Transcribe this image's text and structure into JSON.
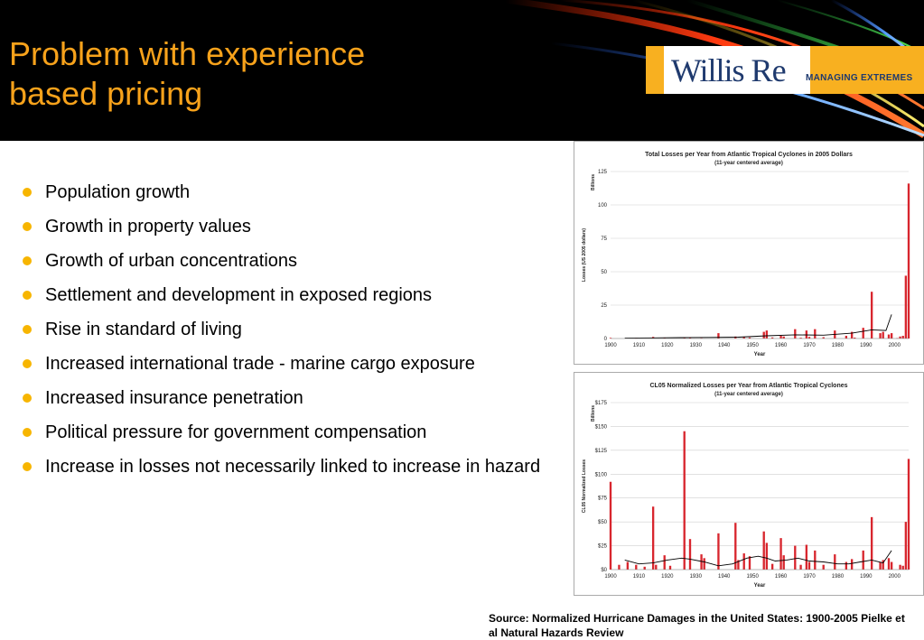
{
  "slide": {
    "title_line1": "Problem with experience",
    "title_line2": "based pricing",
    "logo": {
      "word": "Willis Re",
      "tagline": "MANAGING EXTREMES"
    },
    "bullets": [
      "Population growth",
      "Growth in property values",
      "Growth of urban concentrations",
      "Settlement and development in exposed regions",
      "Rise in standard of living",
      "Increased international trade - marine cargo exposure",
      "Increased insurance penetration",
      "Political pressure for government compensation",
      "Increase in losses not necessarily linked to increase in hazard"
    ],
    "source": "Source: Normalized Hurricane Damages in the United States: 1900-2005 Pielke et al Natural Hazards Review"
  },
  "colors": {
    "title": "#f7a21b",
    "bullet": "#f7b500",
    "bar": "#d8262e",
    "line": "#000000"
  },
  "chart_data": [
    {
      "type": "bar",
      "title": "Total Losses per Year from Atlantic Tropical Cyclones in 2005 Dollars",
      "subtitle": "(11-year centered average)",
      "xlabel": "Year",
      "ylabel": "Losses (US 2005 dollars)",
      "unit_label": "Billions",
      "ylim": [
        0,
        125
      ],
      "xlim": [
        1900,
        2005
      ],
      "yticks": [
        "0",
        "25",
        "50",
        "75",
        "100",
        "125"
      ],
      "ytick_values": [
        0,
        25,
        50,
        75,
        100,
        125
      ],
      "xticks": [
        "1900",
        "1910",
        "1920",
        "1930",
        "1940",
        "1950",
        "1960",
        "1970",
        "1980",
        "1990",
        "2000"
      ],
      "bars": [
        [
          1900,
          0.5
        ],
        [
          1909,
          0.3
        ],
        [
          1915,
          1.2
        ],
        [
          1919,
          0.5
        ],
        [
          1926,
          1.0
        ],
        [
          1928,
          0.8
        ],
        [
          1932,
          0.3
        ],
        [
          1938,
          4.0
        ],
        [
          1944,
          1.5
        ],
        [
          1947,
          1.0
        ],
        [
          1949,
          0.8
        ],
        [
          1954,
          5.0
        ],
        [
          1955,
          6.0
        ],
        [
          1957,
          0.8
        ],
        [
          1960,
          2.0
        ],
        [
          1961,
          1.5
        ],
        [
          1965,
          7.0
        ],
        [
          1967,
          0.6
        ],
        [
          1969,
          6.0
        ],
        [
          1970,
          1.2
        ],
        [
          1972,
          7.0
        ],
        [
          1975,
          1.0
        ],
        [
          1979,
          6.0
        ],
        [
          1983,
          2.0
        ],
        [
          1985,
          5.0
        ],
        [
          1986,
          0.7
        ],
        [
          1989,
          8.0
        ],
        [
          1992,
          35.0
        ],
        [
          1995,
          4.0
        ],
        [
          1996,
          5.0
        ],
        [
          1998,
          3.0
        ],
        [
          1999,
          4.0
        ],
        [
          2001,
          0.3
        ],
        [
          2002,
          1.5
        ],
        [
          2003,
          2.0
        ],
        [
          2004,
          47.0
        ],
        [
          2005,
          116.0
        ]
      ],
      "trend": [
        [
          1905,
          0.3
        ],
        [
          1915,
          0.5
        ],
        [
          1925,
          0.7
        ],
        [
          1935,
          0.8
        ],
        [
          1945,
          1.0
        ],
        [
          1955,
          2.0
        ],
        [
          1965,
          2.8
        ],
        [
          1975,
          2.5
        ],
        [
          1985,
          4.0
        ],
        [
          1992,
          6.5
        ],
        [
          1997,
          6.0
        ],
        [
          1999,
          18.0
        ]
      ]
    },
    {
      "type": "bar",
      "title": "CL05 Normalized Losses per Year from Atlantic Tropical Cyclones",
      "subtitle": "(11-year centered average)",
      "xlabel": "Year",
      "ylabel": "CL05 Normalized Losses",
      "unit_label": "Billions",
      "ylim": [
        0,
        175
      ],
      "xlim": [
        1900,
        2005
      ],
      "yticks": [
        "$0",
        "$25",
        "$50",
        "$75",
        "$100",
        "$125",
        "$150",
        "$175"
      ],
      "ytick_values": [
        0,
        25,
        50,
        75,
        100,
        125,
        150,
        175
      ],
      "xticks": [
        "1900",
        "1910",
        "1920",
        "1930",
        "1940",
        "1950",
        "1960",
        "1970",
        "1980",
        "1990",
        "2000"
      ],
      "bars": [
        [
          1900,
          92
        ],
        [
          1903,
          5
        ],
        [
          1906,
          8
        ],
        [
          1909,
          5
        ],
        [
          1912,
          3
        ],
        [
          1915,
          66
        ],
        [
          1916,
          5
        ],
        [
          1919,
          15
        ],
        [
          1921,
          4
        ],
        [
          1926,
          145
        ],
        [
          1928,
          32
        ],
        [
          1932,
          16
        ],
        [
          1933,
          12
        ],
        [
          1938,
          38
        ],
        [
          1944,
          49
        ],
        [
          1945,
          10
        ],
        [
          1947,
          17
        ],
        [
          1949,
          14
        ],
        [
          1954,
          40
        ],
        [
          1955,
          28
        ],
        [
          1957,
          6
        ],
        [
          1960,
          33
        ],
        [
          1961,
          15
        ],
        [
          1965,
          25
        ],
        [
          1967,
          5
        ],
        [
          1969,
          26
        ],
        [
          1970,
          8
        ],
        [
          1972,
          20
        ],
        [
          1975,
          5
        ],
        [
          1979,
          16
        ],
        [
          1983,
          8
        ],
        [
          1985,
          11
        ],
        [
          1989,
          20
        ],
        [
          1992,
          55
        ],
        [
          1995,
          8
        ],
        [
          1996,
          10
        ],
        [
          1998,
          12
        ],
        [
          1999,
          8
        ],
        [
          2002,
          5
        ],
        [
          2003,
          4
        ],
        [
          2004,
          50
        ],
        [
          2005,
          116
        ]
      ],
      "trend": [
        [
          1905,
          10
        ],
        [
          1910,
          6
        ],
        [
          1915,
          7
        ],
        [
          1920,
          10
        ],
        [
          1925,
          12
        ],
        [
          1928,
          11
        ],
        [
          1933,
          8
        ],
        [
          1938,
          4
        ],
        [
          1943,
          6
        ],
        [
          1948,
          12
        ],
        [
          1952,
          14
        ],
        [
          1955,
          12
        ],
        [
          1958,
          9
        ],
        [
          1962,
          10
        ],
        [
          1966,
          12
        ],
        [
          1970,
          9
        ],
        [
          1975,
          8
        ],
        [
          1980,
          6
        ],
        [
          1984,
          6
        ],
        [
          1988,
          8
        ],
        [
          1992,
          10
        ],
        [
          1996,
          7
        ],
        [
          1999,
          20
        ]
      ]
    }
  ]
}
